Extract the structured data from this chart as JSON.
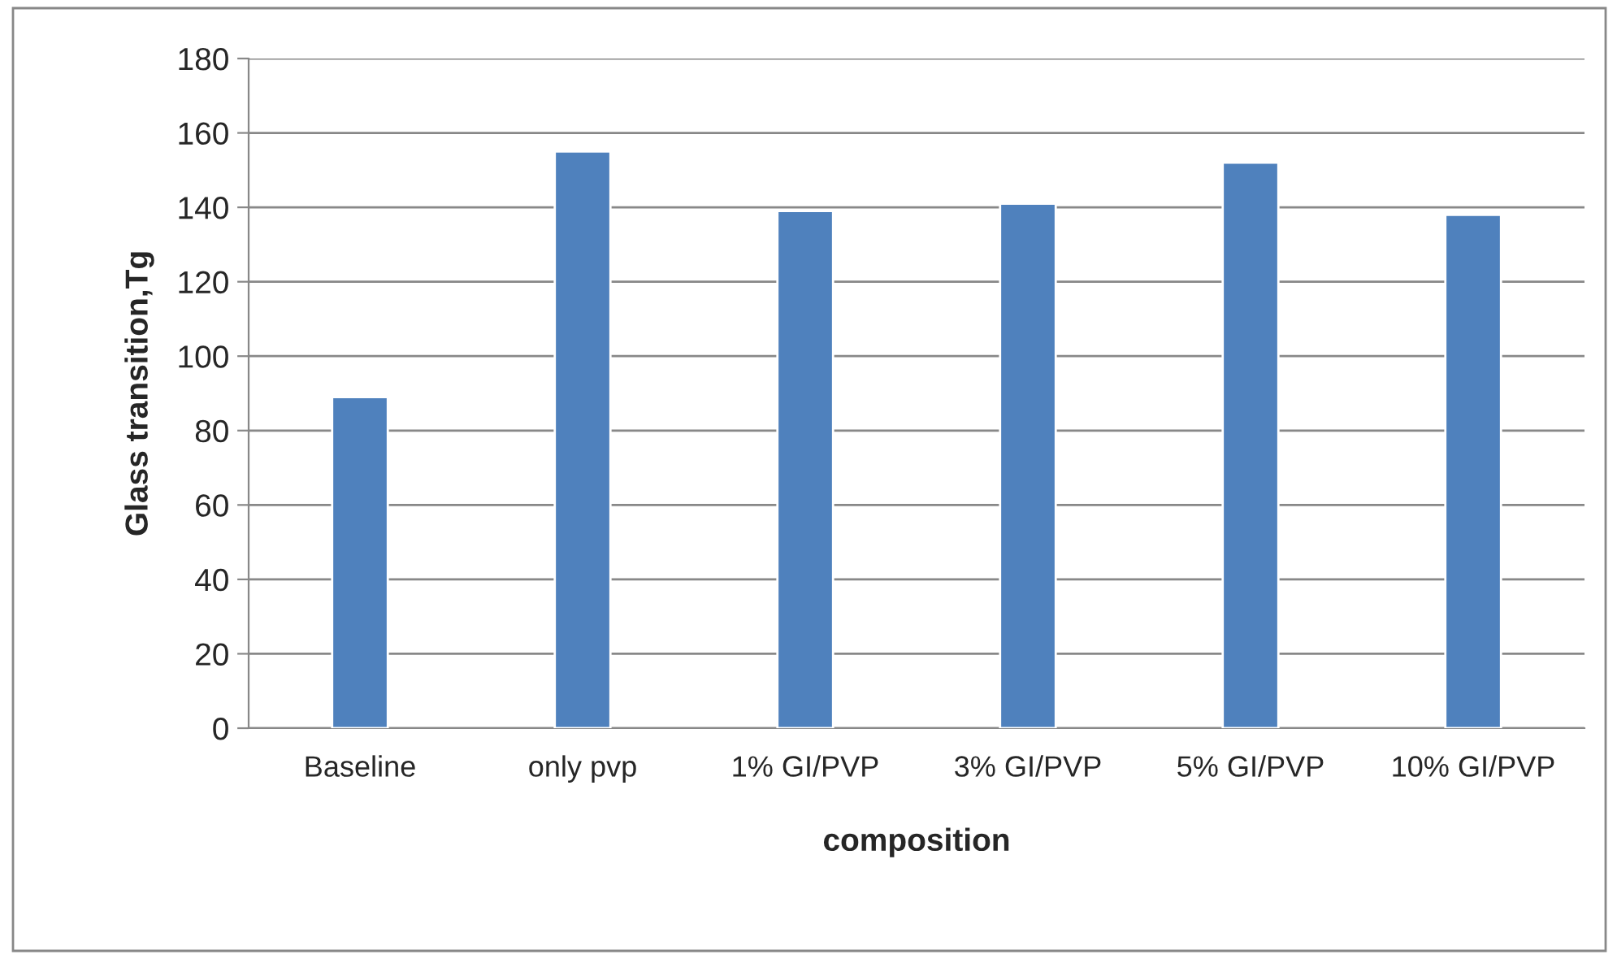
{
  "chart_data": {
    "type": "bar",
    "xlabel": "composition",
    "ylabel": "Glass transition,Tg",
    "categories": [
      "Baseline",
      "only pvp",
      "1% GI/PVP",
      "3% GI/PVP",
      "5% GI/PVP",
      "10% GI/PVP"
    ],
    "values": [
      89,
      155,
      139,
      141,
      152,
      138
    ],
    "color": "#4f81bd",
    "ylim": [
      0,
      180
    ],
    "yticks": [
      0,
      20,
      40,
      60,
      80,
      100,
      120,
      140,
      160,
      180
    ],
    "grid": "y",
    "legend": false
  }
}
